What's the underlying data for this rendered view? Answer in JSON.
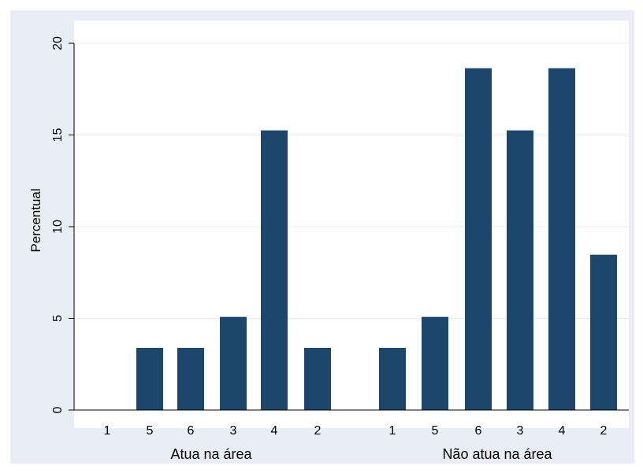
{
  "chart_data": {
    "type": "bar",
    "title": "",
    "ylabel": "Percentual",
    "ylim": [
      0,
      20
    ],
    "yticks": [
      0,
      5,
      10,
      15,
      20
    ],
    "grid": true,
    "colors": {
      "bar": "#1c466c",
      "outer_background": "#e8eef3",
      "plot_background": "#ffffff",
      "grid": "#e6ecf0"
    },
    "groups": [
      {
        "name": "Atua na área",
        "categories": [
          "1",
          "5",
          "6",
          "3",
          "4",
          "2"
        ],
        "values": [
          0,
          3.39,
          3.39,
          5.08,
          15.25,
          3.39
        ]
      },
      {
        "name": "Não atua na área",
        "categories": [
          "1",
          "5",
          "6",
          "3",
          "4",
          "2"
        ],
        "values": [
          3.39,
          5.08,
          18.64,
          15.25,
          18.64,
          8.47
        ]
      }
    ]
  }
}
